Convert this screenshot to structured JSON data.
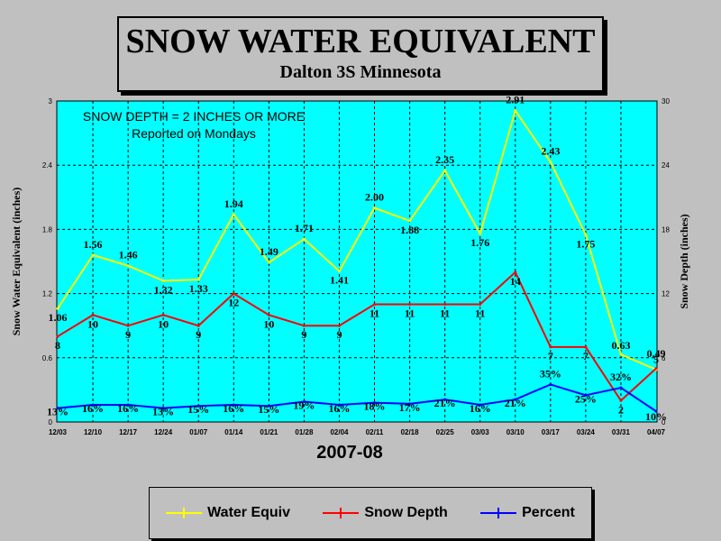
{
  "title": "SNOW WATER EQUIVALENT",
  "subtitle": "Dalton 3S Minnesota",
  "chart_data": {
    "type": "line",
    "annotation_line1": "SNOW DEPTH = 2 INCHES OR MORE",
    "annotation_line2": "Reported on Mondays",
    "xlabel": "2007-08",
    "ylabel_left": "Snow Water Equivalent (inches)",
    "ylabel_right": "Snow Depth (inches)",
    "categories": [
      "12/03",
      "12/10",
      "12/17",
      "12/24",
      "01/07",
      "01/14",
      "01/21",
      "01/28",
      "02/04",
      "02/11",
      "02/18",
      "02/25",
      "03/03",
      "03/10",
      "03/17",
      "03/24",
      "03/31",
      "04/07"
    ],
    "ylim_left": [
      0,
      3
    ],
    "yticks_left": [
      "0",
      "0.6",
      "1.2",
      "1.8",
      "2.4",
      "3"
    ],
    "ylim_right": [
      0,
      30
    ],
    "yticks_right": [
      "0",
      "6",
      "12",
      "18",
      "24",
      "30"
    ],
    "grid": true,
    "legend_position": "bottom",
    "series": [
      {
        "name": "Water Equiv",
        "color": "#ffff00",
        "axis": "left",
        "values": [
          1.06,
          1.56,
          1.46,
          1.32,
          1.33,
          1.94,
          1.49,
          1.71,
          1.41,
          2.0,
          1.88,
          2.35,
          1.76,
          2.91,
          2.43,
          1.75,
          0.63,
          0.49
        ],
        "labels": [
          "1.06",
          "1.56",
          "1.46",
          "1.32",
          "1.33",
          "1.94",
          "1.49",
          "1.71",
          "1.41",
          "2.00",
          "1.88",
          "2.35",
          "1.76",
          "2.91",
          "2.43",
          "1.75",
          "0.63",
          "0.49"
        ]
      },
      {
        "name": "Snow Depth",
        "color": "#ff0000",
        "axis": "right",
        "values": [
          8,
          10,
          9,
          10,
          9,
          12,
          10,
          9,
          9,
          11,
          11,
          11,
          11,
          14,
          7,
          7,
          2,
          5
        ],
        "labels": [
          "8",
          "10",
          "9",
          "10",
          "9",
          "12",
          "10",
          "9",
          "9",
          "11",
          "11",
          "11",
          "11",
          "14",
          "7",
          "7",
          "2",
          "5"
        ]
      },
      {
        "name": "Percent",
        "color": "#0000ff",
        "axis": "right",
        "values": [
          1.3,
          1.6,
          1.6,
          1.3,
          1.5,
          1.6,
          1.5,
          1.9,
          1.6,
          1.8,
          1.7,
          2.1,
          1.6,
          2.1,
          3.5,
          2.5,
          3.2,
          1.0
        ],
        "labels": [
          "13%",
          "16%",
          "16%",
          "13%",
          "15%",
          "16%",
          "15%",
          "19%",
          "16%",
          "18%",
          "17%",
          "21%",
          "16%",
          "21%",
          "35%",
          "25%",
          "32%",
          "10%"
        ]
      }
    ]
  }
}
